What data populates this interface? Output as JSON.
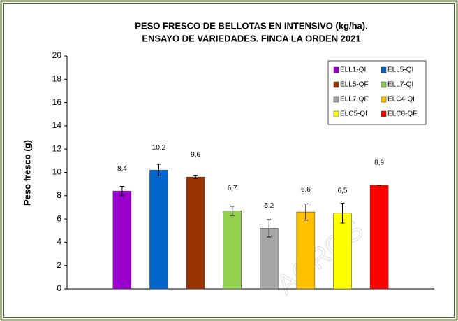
{
  "chart_data": {
    "type": "bar",
    "title": [
      "PESO FRESCO DE BELLOTAS EN INTENSIVO (kg/ha).",
      "ENSAYO DE VARIEDADES. FINCA LA ORDEN 2021"
    ],
    "y_label": "Peso fresco (g)",
    "watermark": "AGROS",
    "categories": [
      "ELL1-QI",
      "ELL5-QI",
      "ELL5-QF",
      "ELL7-QI",
      "ELL7-QF",
      "ELC4-QI",
      "ELC5-QI",
      "ELC8-QF"
    ],
    "values": [
      8.4,
      10.2,
      9.6,
      6.7,
      5.2,
      6.6,
      6.5,
      8.9
    ],
    "value_labels": [
      "8,4",
      "10,2",
      "9,6",
      "6,7",
      "5,2",
      "6,6",
      "6,5",
      "8,9"
    ],
    "errors": [
      0.4,
      0.5,
      0.15,
      0.4,
      0.75,
      0.7,
      0.85,
      0
    ],
    "colors": [
      "#9900cc",
      "#0066cc",
      "#993300",
      "#92d050",
      "#a6a6a6",
      "#ffc000",
      "#ffff00",
      "#ff0000"
    ],
    "ylim": [
      0,
      20
    ],
    "yticks": [
      0,
      2,
      4,
      6,
      8,
      10,
      12,
      14,
      16,
      18,
      20
    ],
    "legend": "upper right"
  }
}
